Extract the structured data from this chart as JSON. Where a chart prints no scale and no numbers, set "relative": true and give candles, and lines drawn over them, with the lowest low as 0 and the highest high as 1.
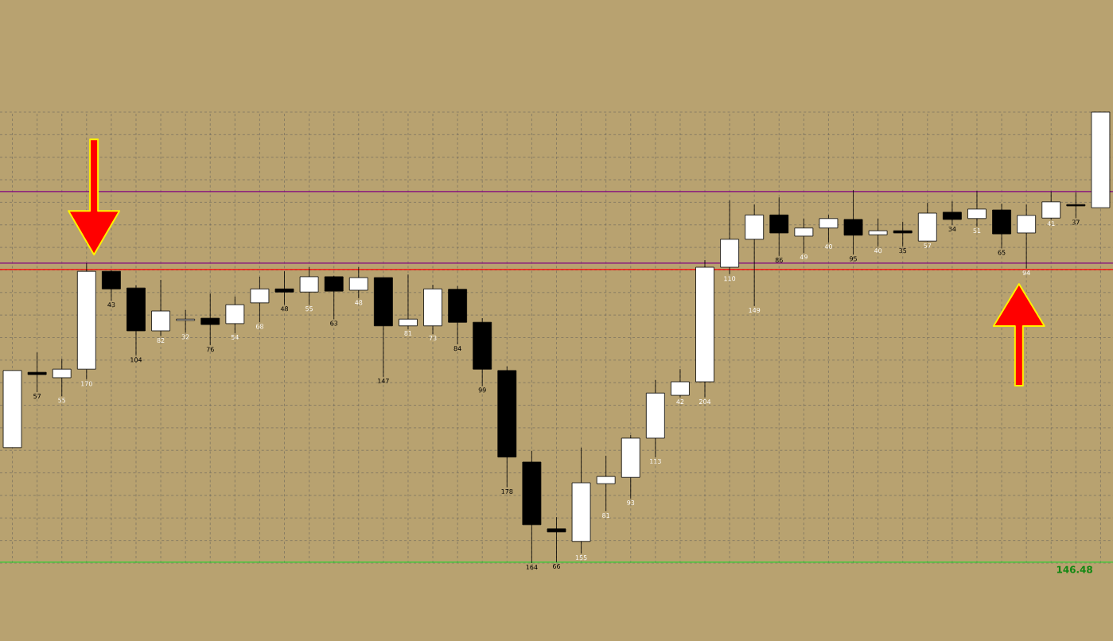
{
  "chart_data": {
    "type": "candlestick",
    "relative": true,
    "grid": true,
    "categories": [
      null,
      null,
      null,
      null,
      null,
      null,
      null,
      null,
      null,
      null,
      null,
      null,
      null,
      null,
      null,
      null,
      null,
      null,
      null,
      null,
      null,
      null,
      null,
      null,
      null,
      null,
      null,
      null,
      null,
      null,
      null,
      null,
      null,
      null,
      null,
      null,
      null,
      null,
      null,
      null,
      null,
      null,
      null,
      null,
      null
    ],
    "ohlc": [
      [
        0.256,
        0.427,
        0.256,
        0.427
      ],
      [
        0.423,
        0.467,
        0.379,
        0.418
      ],
      [
        0.411,
        0.453,
        0.37,
        0.43
      ],
      [
        0.43,
        0.665,
        0.407,
        0.647
      ],
      [
        0.647,
        0.649,
        0.582,
        0.608
      ],
      [
        0.61,
        0.616,
        0.46,
        0.515
      ],
      [
        0.515,
        0.628,
        0.503,
        0.559
      ],
      [
        0.538,
        0.561,
        0.511,
        0.541
      ],
      [
        0.543,
        0.598,
        0.483,
        0.529
      ],
      [
        0.531,
        0.591,
        0.51,
        0.573
      ],
      [
        0.577,
        0.635,
        0.534,
        0.608
      ],
      [
        0.608,
        0.647,
        0.573,
        0.601
      ],
      [
        0.601,
        0.656,
        0.573,
        0.635
      ],
      [
        0.635,
        0.637,
        0.541,
        0.603
      ],
      [
        0.605,
        0.656,
        0.587,
        0.633
      ],
      [
        0.633,
        0.633,
        0.413,
        0.526
      ],
      [
        0.526,
        0.64,
        0.519,
        0.541
      ],
      [
        0.526,
        0.617,
        0.508,
        0.608
      ],
      [
        0.607,
        0.614,
        0.485,
        0.534
      ],
      [
        0.534,
        0.543,
        0.393,
        0.43
      ],
      [
        0.427,
        0.436,
        0.168,
        0.235
      ],
      [
        0.224,
        0.249,
        0,
        0.085
      ],
      [
        0.076,
        0.102,
        0.002,
        0.069
      ],
      [
        0.048,
        0.256,
        0.021,
        0.178
      ],
      [
        0.176,
        0.238,
        0.115,
        0.192
      ],
      [
        0.19,
        0.284,
        0.143,
        0.277
      ],
      [
        0.277,
        0.406,
        0.235,
        0.377
      ],
      [
        0.372,
        0.43,
        0.367,
        0.402
      ],
      [
        0.402,
        0.672,
        0.367,
        0.656
      ],
      [
        0.656,
        0.804,
        0.64,
        0.718
      ],
      [
        0.718,
        0.795,
        0.57,
        0.772
      ],
      [
        0.772,
        0.811,
        0.681,
        0.732
      ],
      [
        0.725,
        0.764,
        0.688,
        0.743
      ],
      [
        0.743,
        0.772,
        0.711,
        0.764
      ],
      [
        0.762,
        0.827,
        0.684,
        0.727
      ],
      [
        0.728,
        0.764,
        0.702,
        0.737
      ],
      [
        0.737,
        0.757,
        0.702,
        0.732
      ],
      [
        0.714,
        0.799,
        0.713,
        0.776
      ],
      [
        0.778,
        0.802,
        0.75,
        0.762
      ],
      [
        0.764,
        0.825,
        0.746,
        0.785
      ],
      [
        0.783,
        0.797,
        0.698,
        0.73
      ],
      [
        0.732,
        0.795,
        0.653,
        0.771
      ],
      [
        0.765,
        0.824,
        0.762,
        0.801
      ],
      [
        0.795,
        0.822,
        0.765,
        0.792
      ],
      [
        0.788,
        1.0,
        0.788,
        1.0
      ]
    ],
    "value_labels": [
      null,
      "57",
      "55",
      "170",
      "43",
      "104",
      "82",
      "32",
      "76",
      "54",
      "68",
      "48",
      "55",
      "63",
      "48",
      "147",
      "81",
      "73",
      "84",
      "99",
      "178",
      "164",
      "66",
      "155",
      "81",
      "93",
      "113",
      "42",
      "204",
      "110",
      "149",
      "86",
      "49",
      "40",
      "95",
      "40",
      "35",
      "57",
      "34",
      "51",
      "65",
      "94",
      "41",
      "37",
      null
    ],
    "ref_lines": [
      {
        "axis": "y",
        "value": 0.651,
        "color": "#ff0000"
      },
      {
        "axis": "y",
        "value": 0.824,
        "color": "#800080"
      },
      {
        "axis": "y",
        "value": 0.665,
        "color": "#800080"
      },
      {
        "axis": "y",
        "value": 0.002,
        "color": "#33cc33"
      }
    ],
    "annotations": [
      "146.48"
    ]
  }
}
